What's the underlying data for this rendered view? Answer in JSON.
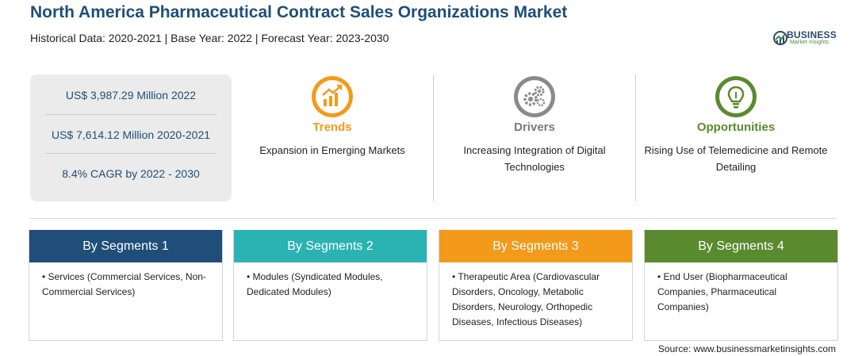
{
  "header": {
    "title": "North America Pharmaceutical Contract Sales Organizations Market",
    "subtitle": "Historical Data: 2020-2021 | Base Year: 2022 | Forecast Year: 2023-2030"
  },
  "logo": {
    "brand": "BUSINESS",
    "tagline": "Market Insights",
    "icon": "globe-logo-icon"
  },
  "stats": [
    "US$ 3,987.29 Million 2022",
    "US$ 7,614.12 Million 2020-2021",
    "8.4% CAGR by 2022 - 2030"
  ],
  "features": {
    "trends": {
      "title": "Trends",
      "desc": "Expansion in Emerging Markets",
      "color": "#f39a1b",
      "icon": "growth-chart-icon"
    },
    "drivers": {
      "title": "Drivers",
      "desc": "Increasing Integration of Digital Technologies",
      "color": "#7a7a7a",
      "icon": "gears-icon"
    },
    "opportunities": {
      "title": "Opportunities",
      "desc": "Rising Use of Telemedicine and Remote Detailing",
      "color": "#5a8a2e",
      "icon": "lightbulb-icon"
    }
  },
  "segments": [
    {
      "title": "By Segments 1",
      "item": "Services (Commercial Services, Non-Commercial Services)",
      "color": "#1f4e79"
    },
    {
      "title": "By Segments 2",
      "item": "Modules (Syndicated Modules, Dedicated Modules)",
      "color": "#2bb3b3"
    },
    {
      "title": "By Segments 3",
      "item": "Therapeutic Area (Cardiovascular Disorders, Oncology, Metabolic Disorders, Neurology, Orthopedic Diseases, Infectious Diseases)",
      "color": "#f39a1b"
    },
    {
      "title": "By Segments 4",
      "item": "End User (Biopharmaceutical Companies, Pharmaceutical Companies)",
      "color": "#5a8a2e"
    }
  ],
  "footer": {
    "source": "Source: www.businessmarketinsights.com"
  }
}
